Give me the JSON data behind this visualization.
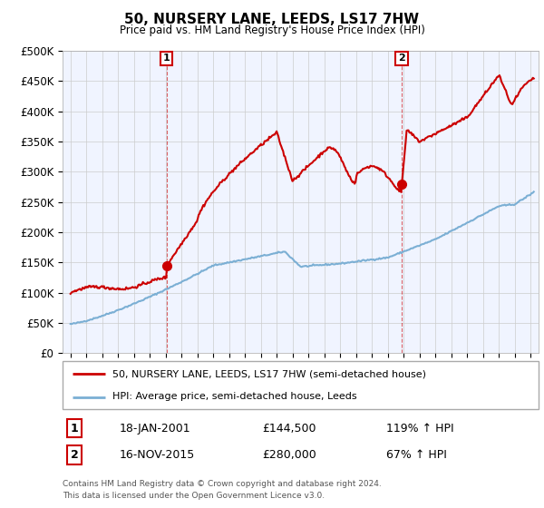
{
  "title": "50, NURSERY LANE, LEEDS, LS17 7HW",
  "subtitle": "Price paid vs. HM Land Registry's House Price Index (HPI)",
  "legend_line1": "50, NURSERY LANE, LEEDS, LS17 7HW (semi-detached house)",
  "legend_line2": "HPI: Average price, semi-detached house, Leeds",
  "annotation1_date": "18-JAN-2001",
  "annotation1_price": "£144,500",
  "annotation1_hpi": "119% ↑ HPI",
  "annotation2_date": "16-NOV-2015",
  "annotation2_price": "£280,000",
  "annotation2_hpi": "67% ↑ HPI",
  "footnote1": "Contains HM Land Registry data © Crown copyright and database right 2024.",
  "footnote2": "This data is licensed under the Open Government Licence v3.0.",
  "price_line_color": "#cc0000",
  "hpi_line_color": "#7bafd4",
  "background_color": "#ffffff",
  "grid_color": "#cccccc",
  "ylim": [
    0,
    500000
  ],
  "yticks": [
    0,
    50000,
    100000,
    150000,
    200000,
    250000,
    300000,
    350000,
    400000,
    450000,
    500000
  ],
  "sale1_year": 2001.05,
  "sale1_price": 144500,
  "sale2_year": 2015.88,
  "sale2_price": 280000
}
